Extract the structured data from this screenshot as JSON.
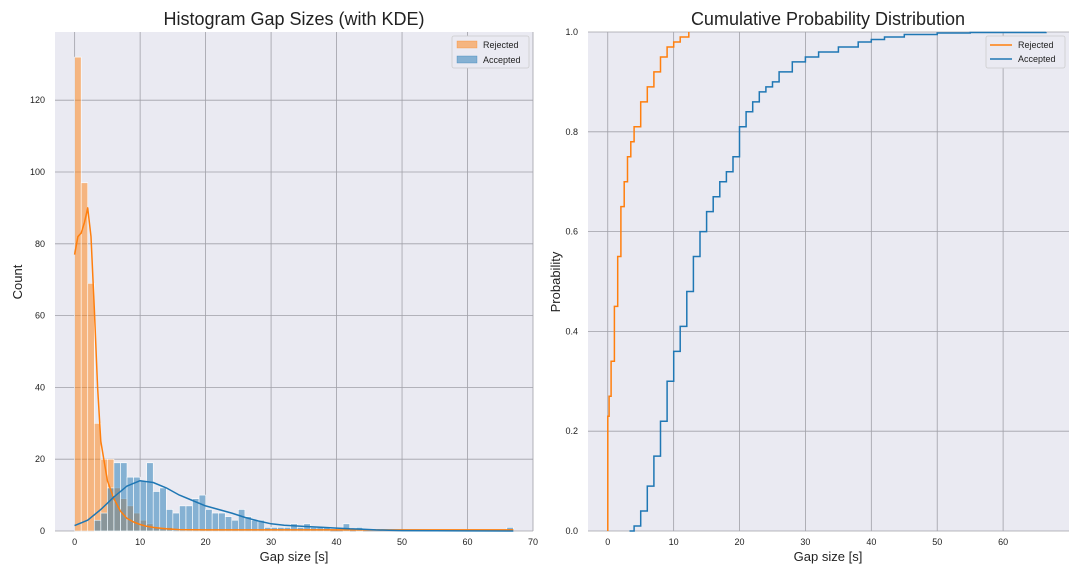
{
  "chart_data": [
    {
      "type": "bar",
      "title": "Histogram Gap Sizes (with KDE)",
      "xlabel": "Gap size [s]",
      "ylabel": "Count",
      "xlim": [
        -3,
        70
      ],
      "ylim": [
        0,
        139
      ],
      "xticks": [
        0,
        10,
        20,
        30,
        40,
        50,
        60,
        70
      ],
      "yticks": [
        0,
        20,
        40,
        60,
        80,
        100,
        120
      ],
      "grid": true,
      "legend_position": "top-right",
      "colors": {
        "Rejected": "#ff7f0e",
        "Accepted": "#1f77b4"
      },
      "bin_width": 1,
      "series": [
        {
          "name": "Rejected",
          "bin_starts": [
            0,
            1,
            2,
            3,
            4,
            5,
            6,
            7,
            8,
            9,
            10,
            11,
            12,
            13,
            14,
            15,
            16,
            17,
            18,
            19,
            20,
            21,
            22,
            23,
            24,
            25,
            26,
            27,
            28,
            29,
            30,
            31,
            32,
            33,
            34,
            35,
            36,
            37,
            38,
            39,
            40,
            41,
            42,
            43,
            44,
            45,
            46,
            47,
            48,
            49,
            50,
            51,
            52,
            53,
            54,
            55,
            56,
            57,
            58,
            59,
            60,
            61,
            62,
            63,
            64,
            65,
            66
          ],
          "counts": [
            132,
            97,
            69,
            30,
            20,
            20,
            12,
            9,
            7,
            5,
            3,
            2,
            1,
            1,
            1,
            0,
            0,
            0,
            0,
            0,
            0,
            0,
            0,
            0,
            0,
            0,
            0,
            0,
            0,
            0,
            0,
            0,
            0,
            0,
            0,
            0,
            0,
            0,
            0,
            0,
            0,
            0,
            0,
            0,
            0,
            0,
            0,
            0,
            0,
            0,
            0,
            0,
            0,
            0,
            0,
            0,
            0,
            0,
            0,
            0,
            0,
            0,
            0,
            0,
            0,
            0,
            0
          ],
          "kde": {
            "x": [
              0,
              0.5,
              1,
              1.5,
              2,
              2.5,
              3,
              3.5,
              4,
              5,
              6,
              7,
              8,
              9,
              10,
              11,
              12,
              13,
              14,
              15,
              16,
              20,
              25,
              30,
              40,
              50,
              60,
              67
            ],
            "y": [
              77,
              82,
              83,
              86,
              90,
              82,
              62,
              40,
              25,
              14,
              9,
              5.5,
              3.5,
              2.5,
              1.8,
              1.3,
              1,
              0.8,
              0.6,
              0.5,
              0.4,
              0.3,
              0.3,
              0.3,
              0.3,
              0.3,
              0.3,
              0.3
            ]
          }
        },
        {
          "name": "Accepted",
          "bin_starts": [
            0,
            1,
            2,
            3,
            4,
            5,
            6,
            7,
            8,
            9,
            10,
            11,
            12,
            13,
            14,
            15,
            16,
            17,
            18,
            19,
            20,
            21,
            22,
            23,
            24,
            25,
            26,
            27,
            28,
            29,
            30,
            31,
            32,
            33,
            34,
            35,
            36,
            37,
            38,
            39,
            40,
            41,
            42,
            43,
            44,
            45,
            46,
            47,
            48,
            49,
            50,
            51,
            52,
            53,
            54,
            55,
            56,
            57,
            58,
            59,
            60,
            61,
            62,
            63,
            64,
            65,
            66
          ],
          "counts": [
            0,
            0,
            0,
            3,
            5,
            12,
            19,
            19,
            15,
            15,
            14,
            19,
            11,
            12,
            6,
            5,
            7,
            7,
            9,
            10,
            6,
            5,
            5,
            4,
            3,
            6,
            4,
            3,
            3,
            1,
            1,
            1,
            1,
            2,
            1,
            2,
            1,
            1,
            1,
            0,
            0,
            2,
            0,
            1,
            0,
            0,
            0,
            0,
            0,
            0,
            0,
            0,
            0,
            0,
            0,
            0,
            0,
            0,
            0,
            0,
            0,
            0,
            0,
            0,
            0,
            0,
            1
          ],
          "kde": {
            "x": [
              0,
              2,
              4,
              6,
              8,
              10,
              12,
              14,
              16,
              18,
              20,
              22,
              24,
              26,
              28,
              30,
              32,
              34,
              36,
              38,
              40,
              42,
              44,
              46,
              48,
              50,
              55,
              60,
              67
            ],
            "y": [
              1.5,
              3,
              6,
              9.5,
              12.5,
              14,
              13.5,
              12,
              10,
              8.5,
              7,
              6,
              5,
              3.8,
              2.8,
              2,
              1.6,
              1.4,
              1.2,
              1,
              0.8,
              0.6,
              0.5,
              0.3,
              0.2,
              0.1,
              0.05,
              0.02,
              0
            ]
          }
        }
      ]
    },
    {
      "type": "line",
      "title": "Cumulative Probability Distribution",
      "xlabel": "Gap size [s]",
      "ylabel": "Probability",
      "xlim": [
        -3,
        70
      ],
      "ylim": [
        0,
        1
      ],
      "xticks": [
        0,
        10,
        20,
        30,
        40,
        50,
        60
      ],
      "yticks": [
        0,
        0.2,
        0.4,
        0.6,
        0.8,
        1.0
      ],
      "grid": true,
      "legend_position": "top-right",
      "colors": {
        "Rejected": "#ff7f0e",
        "Accepted": "#1f77b4"
      },
      "series": [
        {
          "name": "Rejected",
          "x": [
            0,
            0,
            0.2,
            0.5,
            1,
            1.5,
            2,
            2.5,
            3,
            3.5,
            4,
            5,
            6,
            7,
            8,
            9,
            10,
            11,
            12.3
          ],
          "y": [
            0,
            0.23,
            0.27,
            0.34,
            0.45,
            0.55,
            0.65,
            0.7,
            0.75,
            0.78,
            0.81,
            0.86,
            0.89,
            0.92,
            0.95,
            0.97,
            0.98,
            0.99,
            1.0
          ]
        },
        {
          "name": "Accepted",
          "x": [
            3.3,
            4,
            5,
            6,
            7,
            8,
            9,
            10,
            11,
            12,
            13,
            14,
            15,
            16,
            17,
            18,
            19,
            20,
            21,
            22,
            23,
            24,
            25,
            26,
            28,
            30,
            32,
            35,
            38,
            40,
            42,
            45,
            50,
            55,
            60,
            66.5
          ],
          "y": [
            0,
            0.01,
            0.04,
            0.09,
            0.15,
            0.22,
            0.3,
            0.36,
            0.41,
            0.48,
            0.55,
            0.6,
            0.64,
            0.67,
            0.7,
            0.72,
            0.75,
            0.81,
            0.84,
            0.86,
            0.88,
            0.89,
            0.9,
            0.92,
            0.94,
            0.95,
            0.96,
            0.97,
            0.98,
            0.985,
            0.99,
            0.995,
            0.998,
            0.999,
            0.999,
            1.0
          ]
        }
      ]
    }
  ]
}
